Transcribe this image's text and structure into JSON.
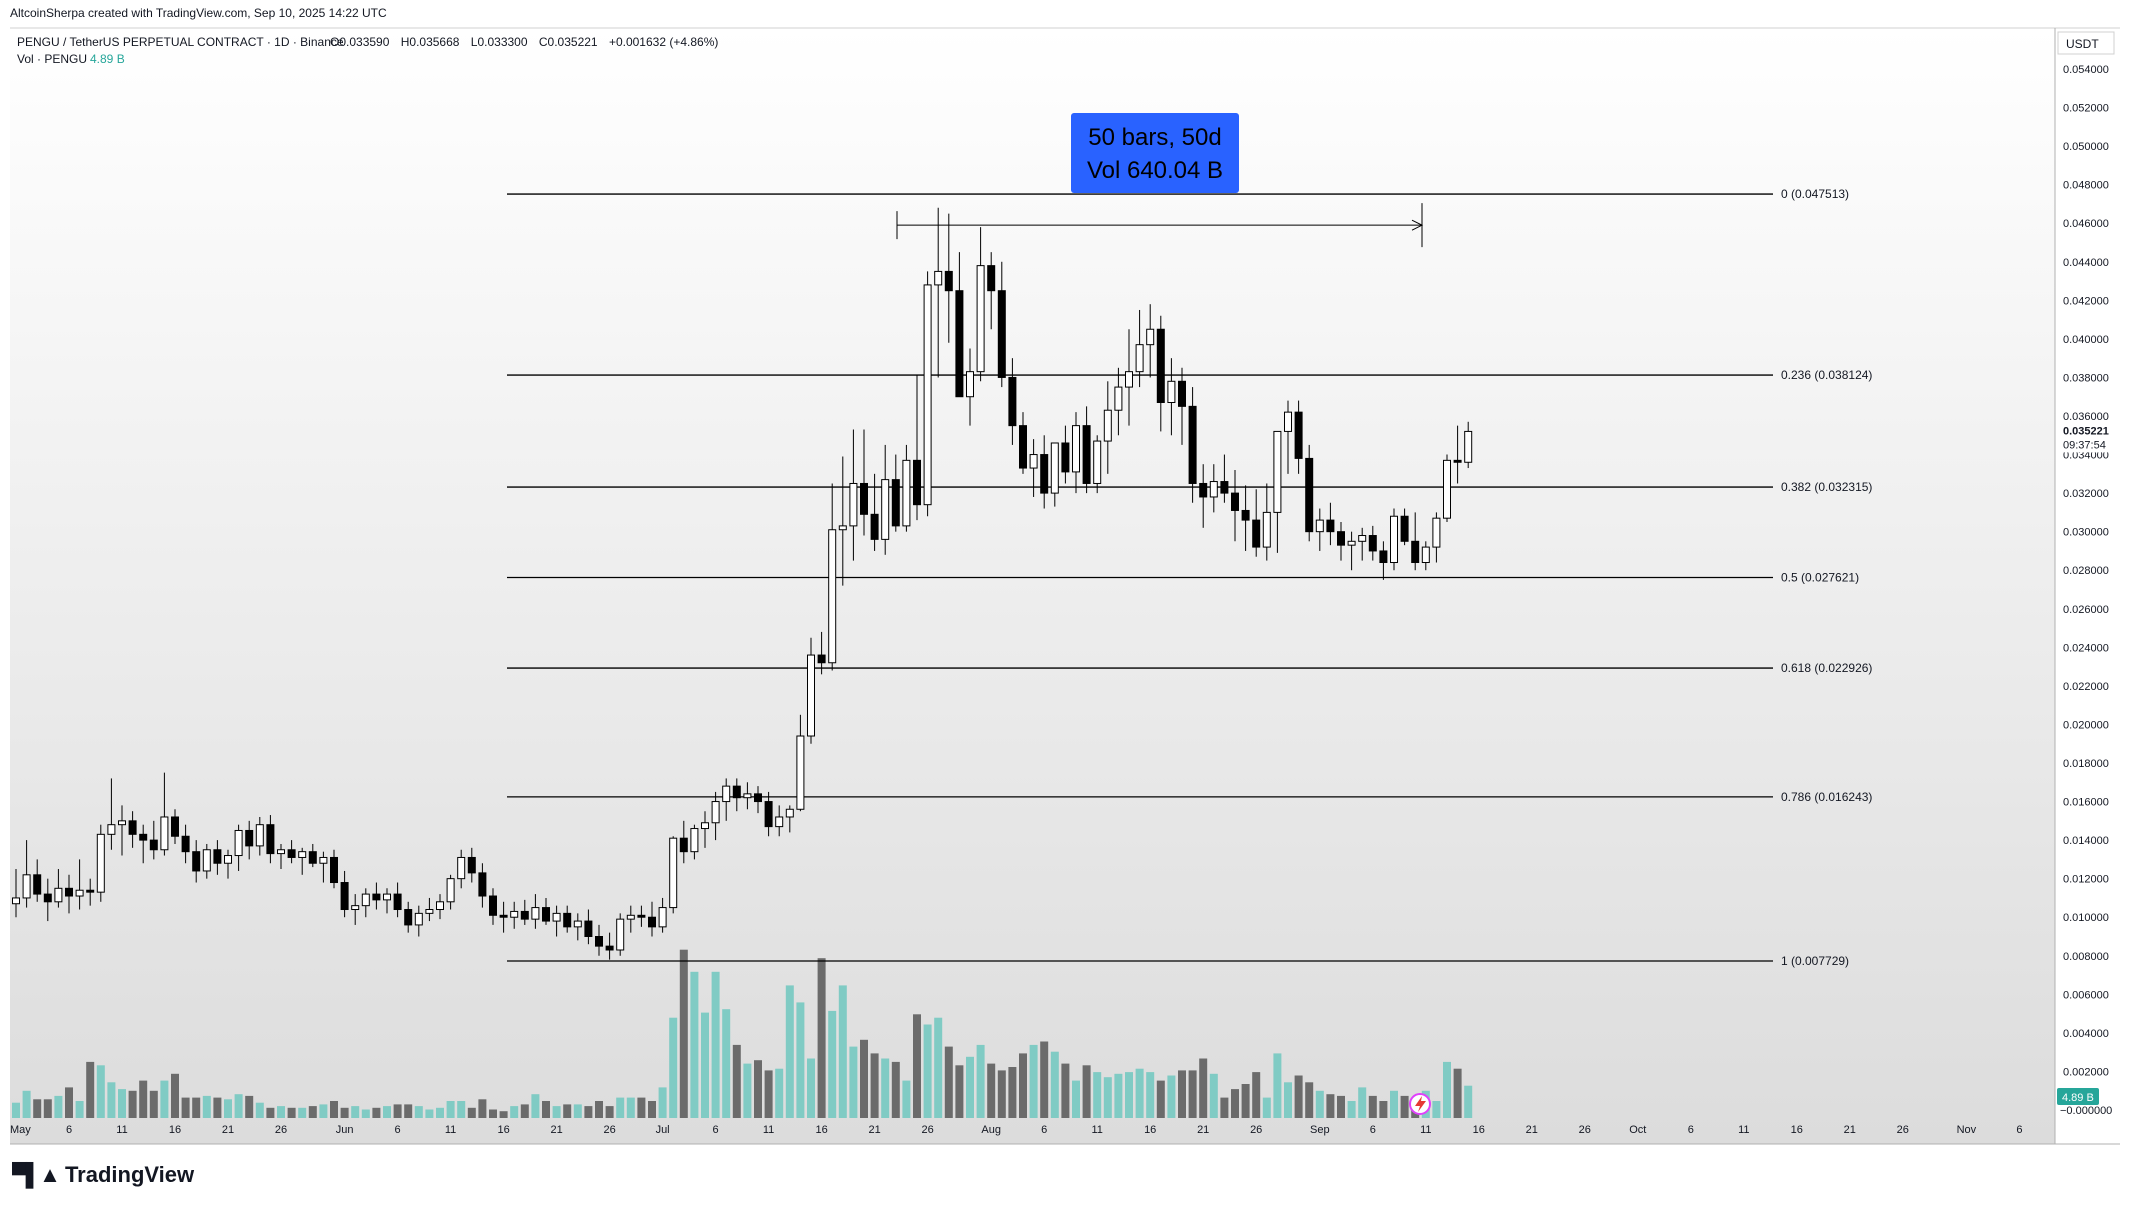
{
  "header": {
    "credit": "AltcoinSherpa created with TradingView.com, Sep 10, 2025 14:22 UTC"
  },
  "legend": {
    "symbol": "PENGU / TetherUS PERPETUAL CONTRACT · 1D · Binance",
    "open": "O0.033590",
    "high": "H0.035668",
    "low": "L0.033300",
    "close": "C0.035221",
    "change": "+0.001632 (+4.86%)",
    "vol_label": "Vol · PENGU",
    "vol_value": "4.89 B"
  },
  "measure_box": {
    "line1": "50 bars, 50d",
    "line2": "Vol 640.04 B"
  },
  "price_axis": {
    "currency": "USDT",
    "current_price": "0.035221",
    "countdown": "09:37:54",
    "vol_badge": "4.89 B"
  },
  "footer": {
    "brand": "TradingView"
  },
  "colors": {
    "up_candle": "#ffffff",
    "down_candle": "#000000",
    "vol_up": "#80cbc4",
    "vol_down": "#6b6b6b",
    "measure": "#2962ff",
    "vol_badge": "#26a69a"
  },
  "chart_data": {
    "type": "candlestick",
    "title": "PENGU / TetherUS PERPETUAL CONTRACT · 1D · Binance",
    "ylim": [
      0.0,
      0.055
    ],
    "y_ticks": [
      0.054,
      0.052,
      0.05,
      0.048,
      0.046,
      0.044,
      0.042,
      0.04,
      0.038,
      0.036,
      0.034,
      0.032,
      0.03,
      0.028,
      0.026,
      0.024,
      0.022,
      0.02,
      0.018,
      0.016,
      0.014,
      0.012,
      0.01,
      0.008,
      0.006,
      0.004,
      0.002
    ],
    "y_tick_labels": [
      "0.054000",
      "0.052000",
      "0.050000",
      "0.048000",
      "0.046000",
      "0.044000",
      "0.042000",
      "0.040000",
      "0.038000",
      "0.036000",
      "0.034000",
      "0.032000",
      "0.030000",
      "0.028000",
      "0.026000",
      "0.024000",
      "0.022000",
      "0.020000",
      "0.018000",
      "0.016000",
      "0.014000",
      "0.012000",
      "0.010000",
      "0.008000",
      "0.006000",
      "0.004000",
      "0.002000"
    ],
    "zero_label": "−0.000000",
    "x_labels": [
      {
        "d": 0,
        "t": "May"
      },
      {
        "d": 5,
        "t": "6"
      },
      {
        "d": 10,
        "t": "11"
      },
      {
        "d": 15,
        "t": "16"
      },
      {
        "d": 20,
        "t": "21"
      },
      {
        "d": 25,
        "t": "26"
      },
      {
        "d": 31,
        "t": "Jun"
      },
      {
        "d": 36,
        "t": "6"
      },
      {
        "d": 41,
        "t": "11"
      },
      {
        "d": 46,
        "t": "16"
      },
      {
        "d": 51,
        "t": "21"
      },
      {
        "d": 56,
        "t": "26"
      },
      {
        "d": 61,
        "t": "Jul"
      },
      {
        "d": 66,
        "t": "6"
      },
      {
        "d": 71,
        "t": "11"
      },
      {
        "d": 76,
        "t": "16"
      },
      {
        "d": 81,
        "t": "21"
      },
      {
        "d": 86,
        "t": "26"
      },
      {
        "d": 92,
        "t": "Aug"
      },
      {
        "d": 97,
        "t": "6"
      },
      {
        "d": 102,
        "t": "11"
      },
      {
        "d": 107,
        "t": "16"
      },
      {
        "d": 112,
        "t": "21"
      },
      {
        "d": 117,
        "t": "26"
      },
      {
        "d": 123,
        "t": "Sep"
      },
      {
        "d": 128,
        "t": "6"
      },
      {
        "d": 133,
        "t": "11"
      },
      {
        "d": 138,
        "t": "16"
      },
      {
        "d": 143,
        "t": "21"
      },
      {
        "d": 148,
        "t": "26"
      },
      {
        "d": 153,
        "t": "Oct"
      },
      {
        "d": 158,
        "t": "6"
      },
      {
        "d": 163,
        "t": "11"
      },
      {
        "d": 168,
        "t": "16"
      },
      {
        "d": 173,
        "t": "21"
      },
      {
        "d": 178,
        "t": "26"
      },
      {
        "d": 184,
        "t": "Nov"
      },
      {
        "d": 189,
        "t": "6"
      }
    ],
    "fib_levels": [
      {
        "label": "0 (0.047513)",
        "value": 0.047513
      },
      {
        "label": "0.236 (0.038124)",
        "value": 0.038124
      },
      {
        "label": "0.382 (0.032315)",
        "value": 0.032315
      },
      {
        "label": "0.5 (0.027621)",
        "value": 0.027621
      },
      {
        "label": "0.618 (0.022926)",
        "value": 0.022926
      },
      {
        "label": "0.786 (0.016243)",
        "value": 0.016243
      },
      {
        "label": "1 (0.007729)",
        "value": 0.007729
      }
    ],
    "fib_start_day": 46,
    "measure_range": {
      "start_day": 83,
      "end_day": 133,
      "price": 0.0459
    },
    "candles": [
      [
        0.0107,
        0.0125,
        0.01,
        0.011,
        0.9
      ],
      [
        0.011,
        0.014,
        0.0105,
        0.0122,
        1.6
      ],
      [
        0.0122,
        0.013,
        0.0108,
        0.0112,
        1.1
      ],
      [
        0.0112,
        0.012,
        0.0098,
        0.0108,
        1.1
      ],
      [
        0.0108,
        0.0125,
        0.0105,
        0.0115,
        1.3
      ],
      [
        0.0115,
        0.0122,
        0.0102,
        0.0111,
        1.8
      ],
      [
        0.0111,
        0.013,
        0.0104,
        0.0114,
        1.0
      ],
      [
        0.0114,
        0.012,
        0.0106,
        0.0113,
        3.3
      ],
      [
        0.0113,
        0.0148,
        0.0108,
        0.0143,
        3.1
      ],
      [
        0.0143,
        0.0172,
        0.0135,
        0.0148,
        2.1
      ],
      [
        0.0148,
        0.0158,
        0.0132,
        0.015,
        1.7
      ],
      [
        0.015,
        0.0155,
        0.0136,
        0.0143,
        1.6
      ],
      [
        0.0143,
        0.0148,
        0.0128,
        0.014,
        2.2
      ],
      [
        0.014,
        0.015,
        0.013,
        0.0135,
        1.6
      ],
      [
        0.0135,
        0.0175,
        0.0132,
        0.0152,
        2.2
      ],
      [
        0.0152,
        0.0156,
        0.0138,
        0.0142,
        2.6
      ],
      [
        0.0142,
        0.0148,
        0.0128,
        0.0134,
        1.2
      ],
      [
        0.0134,
        0.014,
        0.0118,
        0.0124,
        1.2
      ],
      [
        0.0124,
        0.0138,
        0.012,
        0.0135,
        1.3
      ],
      [
        0.0135,
        0.014,
        0.0122,
        0.0128,
        1.2
      ],
      [
        0.0128,
        0.0135,
        0.012,
        0.0132,
        1.1
      ],
      [
        0.0132,
        0.0148,
        0.0124,
        0.0145,
        1.4
      ],
      [
        0.0145,
        0.015,
        0.013,
        0.0137,
        1.3
      ],
      [
        0.0137,
        0.0152,
        0.0132,
        0.0148,
        0.9
      ],
      [
        0.0148,
        0.0153,
        0.0128,
        0.0133,
        0.6
      ],
      [
        0.0133,
        0.0138,
        0.0125,
        0.0135,
        0.7
      ],
      [
        0.0135,
        0.014,
        0.0128,
        0.0131,
        0.6
      ],
      [
        0.0131,
        0.0136,
        0.0122,
        0.0134,
        0.6
      ],
      [
        0.0134,
        0.0138,
        0.0126,
        0.0128,
        0.7
      ],
      [
        0.0128,
        0.0134,
        0.0118,
        0.0131,
        0.8
      ],
      [
        0.0131,
        0.0135,
        0.0115,
        0.0118,
        1.0
      ],
      [
        0.0118,
        0.0124,
        0.01,
        0.0104,
        0.6
      ],
      [
        0.0104,
        0.0112,
        0.0096,
        0.0106,
        0.7
      ],
      [
        0.0106,
        0.0115,
        0.01,
        0.0112,
        0.5
      ],
      [
        0.0112,
        0.0118,
        0.0104,
        0.0109,
        0.6
      ],
      [
        0.0109,
        0.0115,
        0.0102,
        0.0112,
        0.7
      ],
      [
        0.0112,
        0.0118,
        0.01,
        0.0104,
        0.8
      ],
      [
        0.0104,
        0.0108,
        0.0092,
        0.0096,
        0.8
      ],
      [
        0.0096,
        0.0106,
        0.009,
        0.0102,
        0.7
      ],
      [
        0.0102,
        0.011,
        0.0098,
        0.0104,
        0.5
      ],
      [
        0.0104,
        0.0112,
        0.0099,
        0.0108,
        0.6
      ],
      [
        0.0108,
        0.0122,
        0.0104,
        0.012,
        1.0
      ],
      [
        0.012,
        0.0135,
        0.0115,
        0.0131,
        1.0
      ],
      [
        0.0131,
        0.0136,
        0.0118,
        0.0123,
        0.6
      ],
      [
        0.0123,
        0.0128,
        0.0105,
        0.0111,
        1.1
      ],
      [
        0.0111,
        0.0115,
        0.0096,
        0.0101,
        0.5
      ],
      [
        0.0101,
        0.0108,
        0.0092,
        0.01,
        0.4
      ],
      [
        0.01,
        0.0108,
        0.0094,
        0.0103,
        0.7
      ],
      [
        0.0103,
        0.0109,
        0.0096,
        0.0099,
        0.8
      ],
      [
        0.0099,
        0.0112,
        0.0094,
        0.0105,
        1.4
      ],
      [
        0.0105,
        0.011,
        0.0096,
        0.0098,
        1.0
      ],
      [
        0.0098,
        0.0106,
        0.009,
        0.0102,
        0.7
      ],
      [
        0.0102,
        0.0106,
        0.0092,
        0.0095,
        0.8
      ],
      [
        0.0095,
        0.0102,
        0.0088,
        0.0098,
        0.8
      ],
      [
        0.0098,
        0.0104,
        0.0086,
        0.009,
        0.7
      ],
      [
        0.009,
        0.0096,
        0.008,
        0.0085,
        1.0
      ],
      [
        0.0085,
        0.0092,
        0.0078,
        0.0083,
        0.7
      ],
      [
        0.0083,
        0.0102,
        0.008,
        0.0099,
        1.2
      ],
      [
        0.0099,
        0.0106,
        0.0092,
        0.0101,
        1.2
      ],
      [
        0.0101,
        0.0106,
        0.0095,
        0.01,
        1.2
      ],
      [
        0.01,
        0.0108,
        0.009,
        0.0095,
        1.0
      ],
      [
        0.0095,
        0.011,
        0.0092,
        0.0105,
        1.8
      ],
      [
        0.0105,
        0.0142,
        0.0102,
        0.0141,
        5.9
      ],
      [
        0.0141,
        0.015,
        0.0128,
        0.0134,
        9.9
      ],
      [
        0.0134,
        0.0148,
        0.013,
        0.0146,
        8.6
      ],
      [
        0.0146,
        0.0155,
        0.0136,
        0.0149,
        6.2
      ],
      [
        0.0149,
        0.0165,
        0.014,
        0.016,
        8.6
      ],
      [
        0.016,
        0.0172,
        0.015,
        0.0168,
        6.4
      ],
      [
        0.0168,
        0.0172,
        0.0155,
        0.0162,
        4.3
      ],
      [
        0.0162,
        0.017,
        0.0156,
        0.0164,
        3.2
      ],
      [
        0.0164,
        0.0168,
        0.0154,
        0.016,
        3.4
      ],
      [
        0.016,
        0.0165,
        0.0142,
        0.0147,
        2.8
      ],
      [
        0.0147,
        0.0158,
        0.0142,
        0.0152,
        2.9
      ],
      [
        0.0152,
        0.0158,
        0.0144,
        0.0156,
        7.8
      ],
      [
        0.0156,
        0.0205,
        0.0155,
        0.0194,
        6.8
      ],
      [
        0.0194,
        0.0245,
        0.019,
        0.0236,
        3.5
      ],
      [
        0.0236,
        0.0248,
        0.0226,
        0.0232,
        9.4
      ],
      [
        0.0232,
        0.0325,
        0.0228,
        0.0301,
        6.3
      ],
      [
        0.0301,
        0.0339,
        0.0272,
        0.0303,
        7.8
      ],
      [
        0.0303,
        0.0353,
        0.0285,
        0.0325,
        4.2
      ],
      [
        0.0325,
        0.0353,
        0.0298,
        0.0309,
        4.6
      ],
      [
        0.0309,
        0.033,
        0.029,
        0.0296,
        3.8
      ],
      [
        0.0296,
        0.0345,
        0.0288,
        0.0327,
        3.5
      ],
      [
        0.0327,
        0.034,
        0.03,
        0.0303,
        3.3
      ],
      [
        0.0303,
        0.0345,
        0.03,
        0.0337,
        2.2
      ],
      [
        0.0337,
        0.0381,
        0.0306,
        0.0314,
        6.1
      ],
      [
        0.0314,
        0.0435,
        0.0308,
        0.0428,
        5.5
      ],
      [
        0.0428,
        0.0468,
        0.038,
        0.0435,
        5.9
      ],
      [
        0.0435,
        0.0465,
        0.0398,
        0.0425,
        4.2
      ],
      [
        0.0425,
        0.0445,
        0.037,
        0.037,
        3.1
      ],
      [
        0.037,
        0.0395,
        0.0355,
        0.0383,
        3.6
      ],
      [
        0.0383,
        0.0458,
        0.0378,
        0.0438,
        4.3
      ],
      [
        0.0438,
        0.0445,
        0.0405,
        0.0425,
        3.2
      ],
      [
        0.0425,
        0.044,
        0.0375,
        0.038,
        2.8
      ],
      [
        0.038,
        0.039,
        0.0345,
        0.0355,
        3.0
      ],
      [
        0.0355,
        0.0362,
        0.033,
        0.0333,
        3.8
      ],
      [
        0.0333,
        0.0348,
        0.0318,
        0.034,
        4.3
      ],
      [
        0.034,
        0.035,
        0.0312,
        0.032,
        4.5
      ],
      [
        0.032,
        0.0345,
        0.0313,
        0.0346,
        3.9
      ],
      [
        0.0346,
        0.0355,
        0.0325,
        0.0331,
        3.2
      ],
      [
        0.0331,
        0.0362,
        0.032,
        0.0355,
        2.2
      ],
      [
        0.0355,
        0.0365,
        0.032,
        0.0325,
        3.1
      ],
      [
        0.0325,
        0.035,
        0.032,
        0.0347,
        2.7
      ],
      [
        0.0347,
        0.0378,
        0.033,
        0.0363,
        2.4
      ],
      [
        0.0363,
        0.0385,
        0.035,
        0.0375,
        2.6
      ],
      [
        0.0375,
        0.0405,
        0.0355,
        0.0383,
        2.7
      ],
      [
        0.0383,
        0.0415,
        0.0375,
        0.0397,
        2.9
      ],
      [
        0.0397,
        0.0418,
        0.038,
        0.0405,
        2.7
      ],
      [
        0.0405,
        0.0412,
        0.0352,
        0.0367,
        2.2
      ],
      [
        0.0367,
        0.039,
        0.035,
        0.0378,
        2.5
      ],
      [
        0.0378,
        0.0385,
        0.0345,
        0.0365,
        2.8
      ],
      [
        0.0365,
        0.0375,
        0.0315,
        0.0325,
        2.8
      ],
      [
        0.0325,
        0.0335,
        0.0302,
        0.0318,
        3.5
      ],
      [
        0.0318,
        0.0335,
        0.031,
        0.0326,
        2.6
      ],
      [
        0.0326,
        0.034,
        0.0315,
        0.032,
        1.2
      ],
      [
        0.032,
        0.0332,
        0.0295,
        0.0311,
        1.7
      ],
      [
        0.0311,
        0.0324,
        0.029,
        0.0306,
        2.0
      ],
      [
        0.0306,
        0.0322,
        0.0287,
        0.0292,
        2.7
      ],
      [
        0.0292,
        0.0325,
        0.0285,
        0.031,
        1.2
      ],
      [
        0.031,
        0.0352,
        0.0289,
        0.0352,
        3.8
      ],
      [
        0.0352,
        0.0368,
        0.033,
        0.0362,
        2.1
      ],
      [
        0.0362,
        0.0368,
        0.033,
        0.0338,
        2.5
      ],
      [
        0.0338,
        0.0345,
        0.0295,
        0.03,
        2.1
      ],
      [
        0.03,
        0.0312,
        0.029,
        0.0306,
        1.6
      ],
      [
        0.0306,
        0.0315,
        0.0293,
        0.03,
        1.4
      ],
      [
        0.03,
        0.0305,
        0.0285,
        0.0293,
        1.3
      ],
      [
        0.0293,
        0.03,
        0.028,
        0.0295,
        1.0
      ],
      [
        0.0295,
        0.0302,
        0.0285,
        0.0298,
        1.8
      ],
      [
        0.0298,
        0.0303,
        0.0285,
        0.029,
        1.3
      ],
      [
        0.029,
        0.0295,
        0.0275,
        0.0284,
        1.0
      ],
      [
        0.0284,
        0.0312,
        0.028,
        0.0308,
        1.6
      ],
      [
        0.0308,
        0.0312,
        0.0293,
        0.0295,
        1.3
      ],
      [
        0.0295,
        0.031,
        0.028,
        0.0284,
        1.2
      ],
      [
        0.0284,
        0.0295,
        0.028,
        0.0292,
        1.6
      ],
      [
        0.0292,
        0.031,
        0.0284,
        0.0307,
        1.0
      ],
      [
        0.0307,
        0.034,
        0.0305,
        0.0337,
        3.3
      ],
      [
        0.0337,
        0.0355,
        0.0325,
        0.0336,
        2.9
      ],
      [
        0.0336,
        0.0357,
        0.0333,
        0.0352,
        1.9
      ]
    ]
  }
}
